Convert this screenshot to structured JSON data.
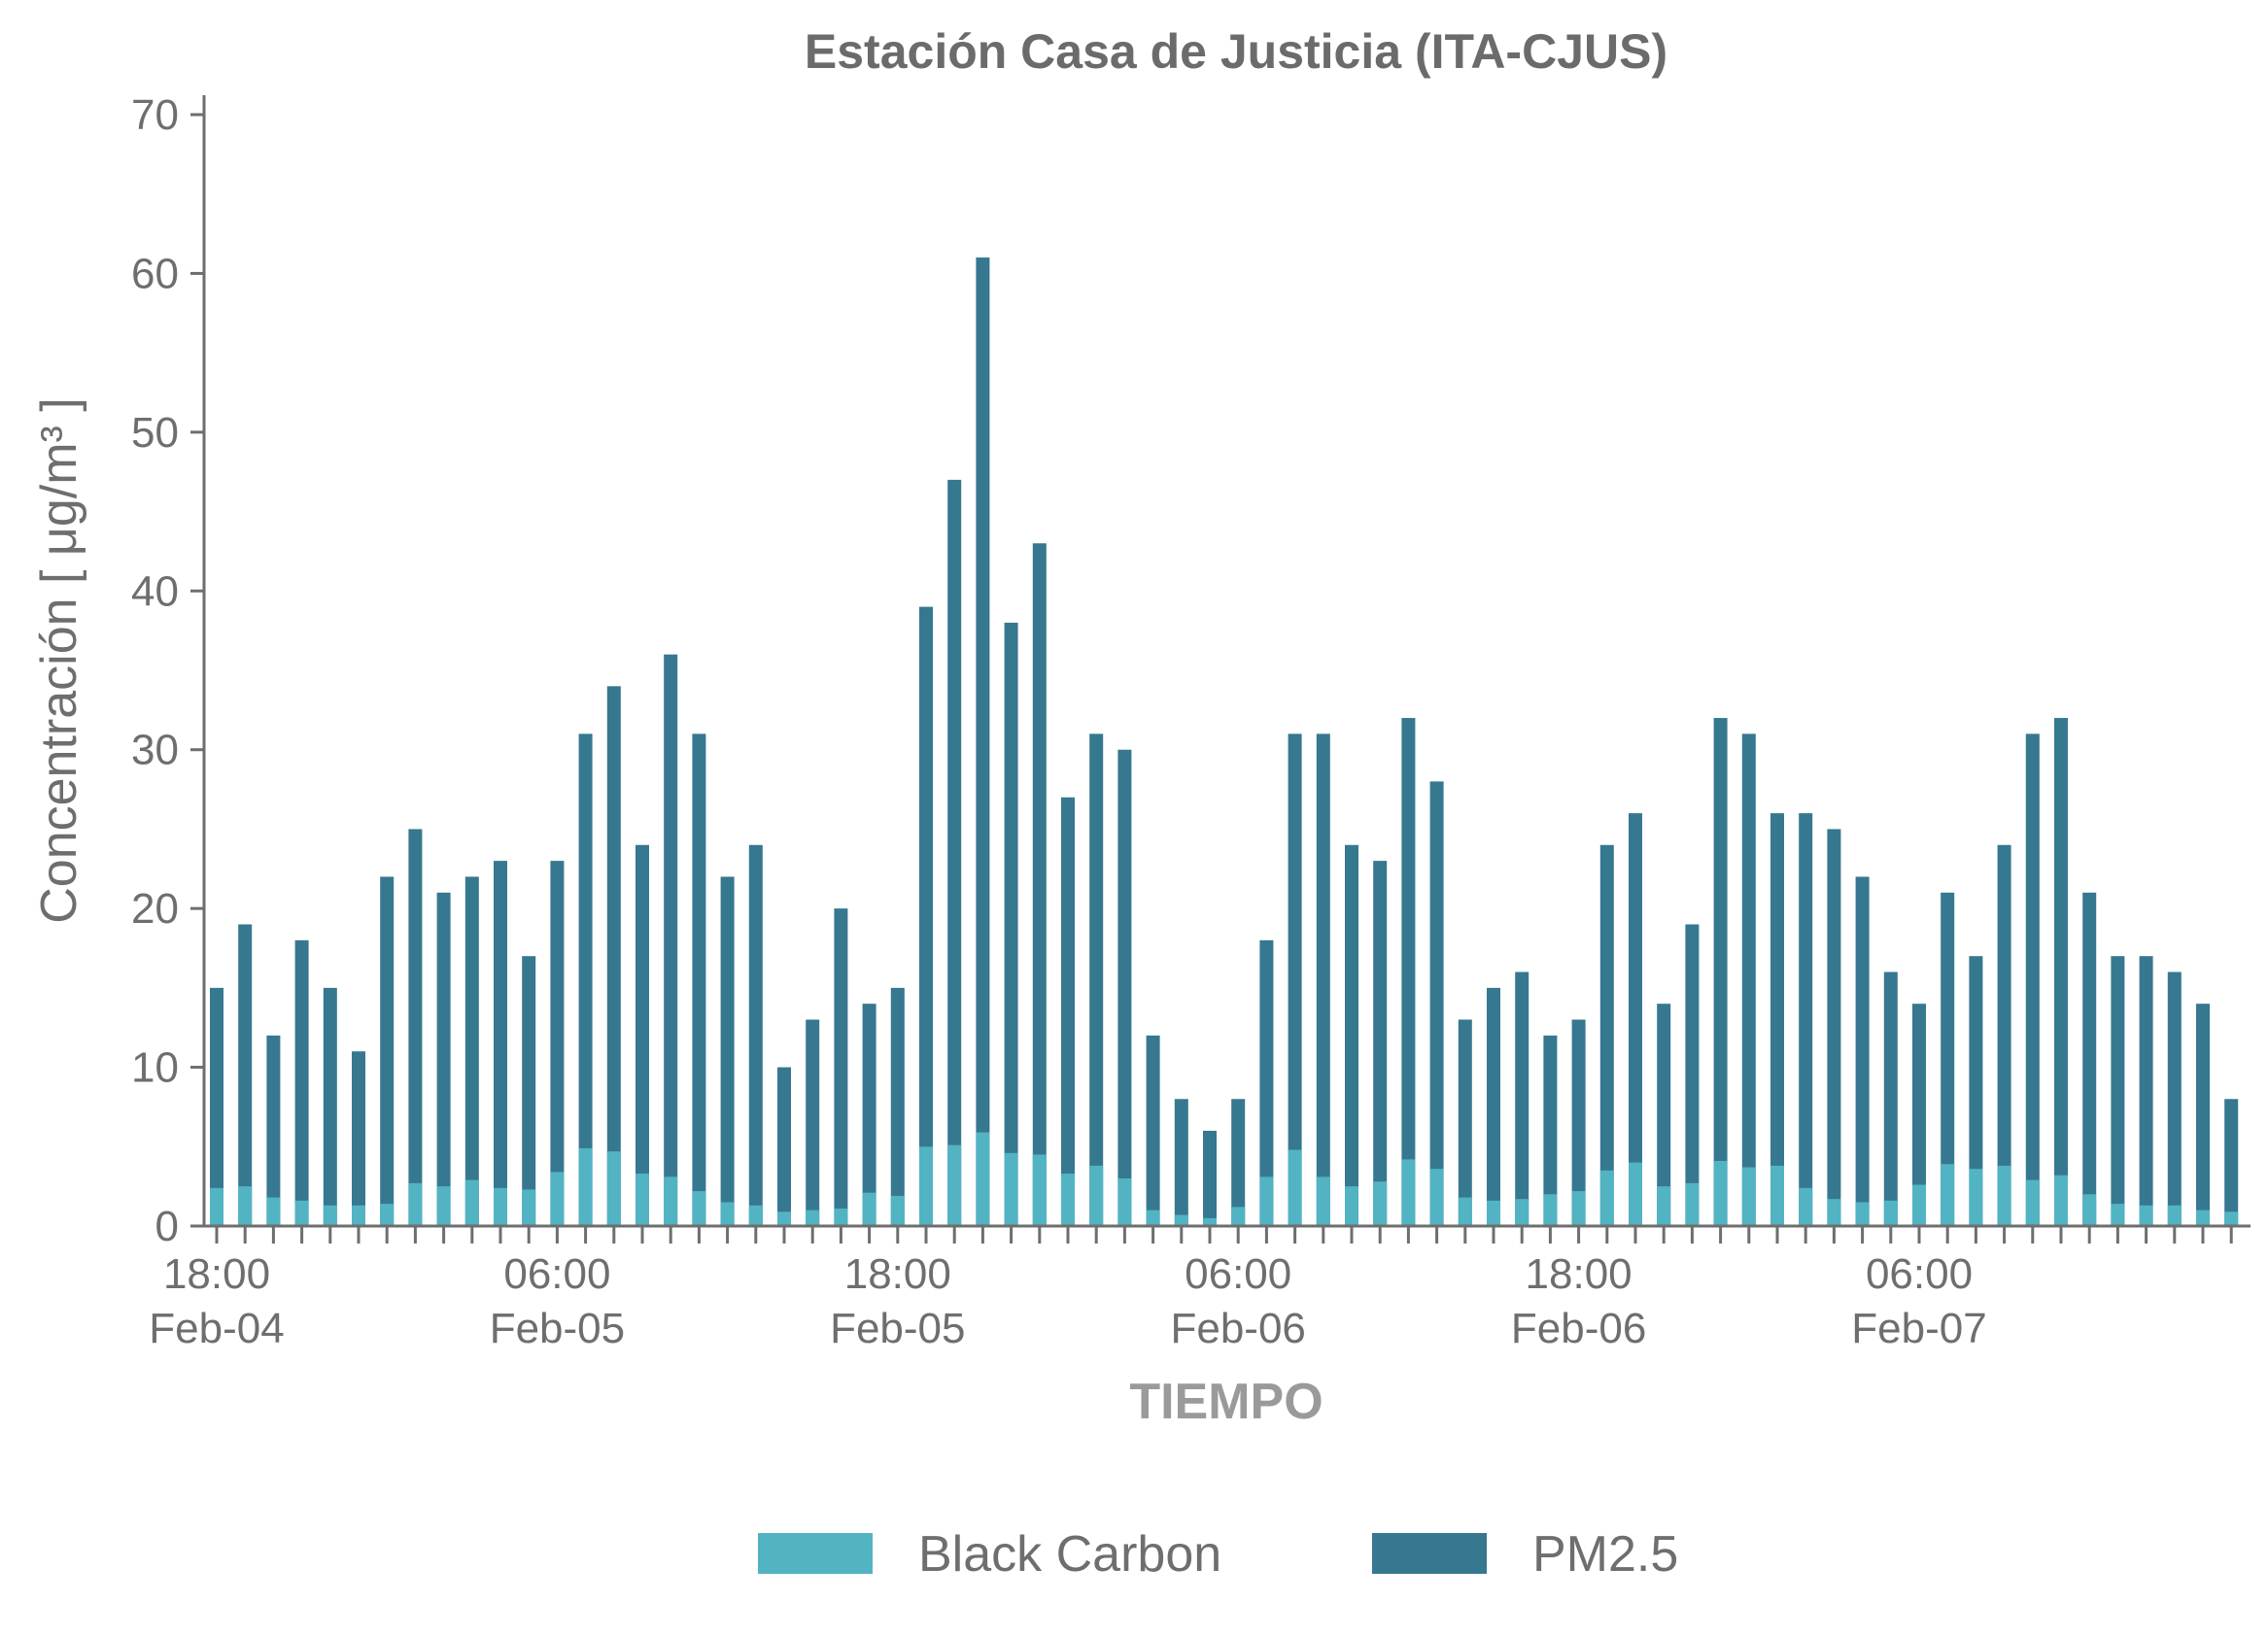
{
  "chart_data": {
    "type": "bar",
    "stacked": true,
    "title": "Estación Casa de Justicia (ITA-CJUS)",
    "xlabel": "TIEMPO",
    "ylabel": "Concentración  [ μg/m³ ]",
    "ylim": [
      0,
      70
    ],
    "yticks": [
      0,
      10,
      20,
      30,
      40,
      50,
      60,
      70
    ],
    "x_tick_labels": [
      {
        "index": 0,
        "time": "18:00",
        "date": "Feb-04"
      },
      {
        "index": 12,
        "time": "06:00",
        "date": "Feb-05"
      },
      {
        "index": 24,
        "time": "18:00",
        "date": "Feb-05"
      },
      {
        "index": 36,
        "time": "06:00",
        "date": "Feb-06"
      },
      {
        "index": 48,
        "time": "18:00",
        "date": "Feb-06"
      },
      {
        "index": 60,
        "time": "06:00",
        "date": "Feb-07"
      }
    ],
    "legend_position": "bottom-center",
    "grid": false,
    "series": [
      {
        "name": "Black Carbon",
        "color": "#52b3c3",
        "values": [
          2.4,
          2.5,
          1.8,
          1.6,
          1.3,
          1.3,
          1.4,
          2.7,
          2.5,
          2.9,
          2.4,
          2.3,
          3.4,
          4.9,
          4.7,
          3.3,
          3.1,
          2.2,
          1.5,
          1.3,
          0.9,
          1.0,
          1.1,
          2.1,
          1.9,
          5.0,
          5.1,
          5.9,
          4.6,
          4.5,
          3.3,
          3.8,
          3.0,
          1.0,
          0.7,
          0.5,
          1.2,
          3.1,
          4.8,
          3.1,
          2.5,
          2.8,
          4.2,
          3.6,
          1.8,
          1.6,
          1.7,
          2.0,
          2.2,
          3.5,
          4.0,
          2.5,
          2.7,
          4.1,
          3.7,
          3.8,
          2.4,
          1.7,
          1.5,
          1.6,
          2.6,
          3.9,
          3.6,
          3.8,
          2.9,
          3.2,
          2.0,
          1.4,
          1.3,
          1.3,
          1.0,
          0.9
        ]
      },
      {
        "name": "PM2.5",
        "color": "#36788f",
        "values": [
          15,
          19,
          12,
          18,
          15,
          11,
          22,
          25,
          21,
          22,
          23,
          17,
          23,
          31,
          34,
          24,
          36,
          31,
          22,
          24,
          10,
          13,
          20,
          14,
          15,
          39,
          47,
          61,
          38,
          43,
          27,
          31,
          30,
          12,
          8,
          6,
          8,
          18,
          31,
          31,
          24,
          23,
          32,
          28,
          13,
          15,
          16,
          12,
          13,
          24,
          26,
          14,
          19,
          32,
          31,
          26,
          26,
          25,
          22,
          16,
          14,
          21,
          17,
          24,
          31,
          32,
          21,
          17,
          17,
          16,
          14,
          8
        ]
      }
    ]
  }
}
